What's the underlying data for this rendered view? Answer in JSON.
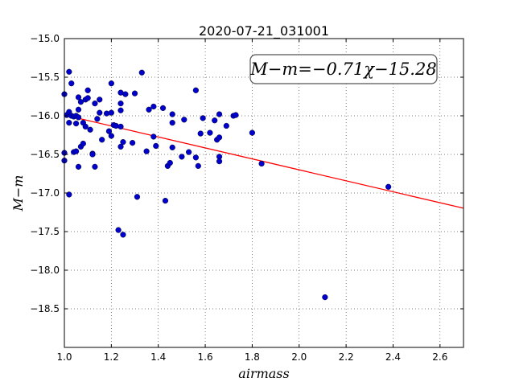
{
  "chart_data": {
    "type": "scatter",
    "title": "2020-07-21_031001",
    "xlabel": "airmass",
    "ylabel": "M−m",
    "xlim": [
      1.0,
      2.7
    ],
    "ylim": [
      -19.0,
      -15.0
    ],
    "y_inverted": true,
    "grid": true,
    "xticks": [
      1.0,
      1.2,
      1.4,
      1.6,
      1.8,
      2.0,
      2.2,
      2.4,
      2.6
    ],
    "xtick_labels": [
      "1.0",
      "1.2",
      "1.4",
      "1.6",
      "1.8",
      "2.0",
      "2.2",
      "2.4",
      "2.6"
    ],
    "yticks": [
      -15.0,
      -15.5,
      -16.0,
      -16.5,
      -17.0,
      -17.5,
      -18.0,
      -18.5
    ],
    "ytick_labels": [
      "−15.0",
      "−15.5",
      "−16.0",
      "−16.5",
      "−17.0",
      "−17.5",
      "−18.0",
      "−18.5"
    ],
    "annotation": "M−m=−0.71χ−15.28",
    "fit": {
      "slope": -0.71,
      "intercept": -15.28,
      "x": [
        1.0,
        2.7
      ],
      "color": "#ff0000"
    },
    "point_color": "#0000cc",
    "x": [
      1.0,
      1.0,
      1.0,
      1.01,
      1.02,
      1.02,
      1.02,
      1.02,
      1.03,
      1.03,
      1.04,
      1.04,
      1.05,
      1.05,
      1.05,
      1.06,
      1.06,
      1.06,
      1.06,
      1.07,
      1.07,
      1.08,
      1.08,
      1.09,
      1.09,
      1.1,
      1.1,
      1.11,
      1.12,
      1.12,
      1.13,
      1.13,
      1.14,
      1.15,
      1.15,
      1.16,
      1.18,
      1.19,
      1.2,
      1.2,
      1.2,
      1.21,
      1.22,
      1.23,
      1.24,
      1.24,
      1.24,
      1.24,
      1.24,
      1.25,
      1.25,
      1.26,
      1.29,
      1.3,
      1.31,
      1.33,
      1.35,
      1.36,
      1.38,
      1.38,
      1.39,
      1.42,
      1.43,
      1.44,
      1.45,
      1.46,
      1.46,
      1.46,
      1.5,
      1.51,
      1.53,
      1.56,
      1.56,
      1.57,
      1.58,
      1.59,
      1.62,
      1.64,
      1.65,
      1.66,
      1.66,
      1.66,
      1.66,
      1.69,
      1.72,
      1.73,
      1.8,
      1.84,
      2.11,
      2.38
    ],
    "y": [
      -16.48,
      -16.58,
      -15.72,
      -15.99,
      -15.95,
      -16.09,
      -15.43,
      -17.02,
      -15.58,
      -16.0,
      -16.01,
      -16.47,
      -16.1,
      -16.46,
      -16.0,
      -15.76,
      -15.92,
      -16.02,
      -16.66,
      -15.82,
      -16.4,
      -16.09,
      -16.36,
      -15.79,
      -16.14,
      -15.77,
      -15.67,
      -16.18,
      -16.49,
      -16.5,
      -15.84,
      -16.66,
      -16.04,
      -15.96,
      -15.79,
      -16.31,
      -15.97,
      -16.2,
      -16.26,
      -15.96,
      -15.58,
      -16.12,
      -16.13,
      -17.48,
      -16.14,
      -15.93,
      -15.84,
      -15.7,
      -16.4,
      -16.34,
      -17.54,
      -15.72,
      -16.35,
      -15.71,
      -17.05,
      -15.44,
      -16.46,
      -15.92,
      -16.27,
      -15.88,
      -16.39,
      -15.9,
      -17.1,
      -16.65,
      -16.61,
      -15.98,
      -16.09,
      -16.41,
      -16.53,
      -16.05,
      -16.47,
      -15.67,
      -16.54,
      -16.65,
      -16.23,
      -16.03,
      -16.22,
      -16.06,
      -16.31,
      -15.98,
      -16.53,
      -16.59,
      -16.28,
      -16.13,
      -16.0,
      -15.99,
      -16.22,
      -16.62,
      -18.35,
      -16.92
    ]
  }
}
